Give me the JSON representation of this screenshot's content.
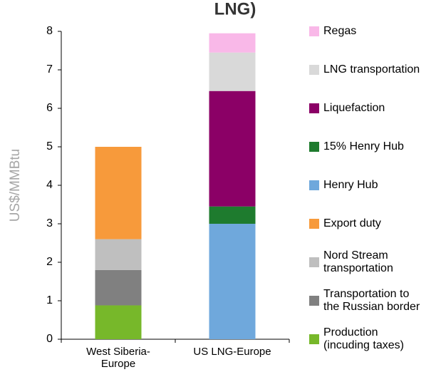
{
  "chart_data": {
    "type": "stacked_bar",
    "title": "LNG)",
    "y_label": "US$/MMBtu",
    "categories": [
      "West Siberia-Europe",
      "US LNG-Europe"
    ],
    "series": [
      {
        "name": "Production (incuding taxes)",
        "color": "#77b82a",
        "values": [
          0.88,
          null
        ]
      },
      {
        "name": "Transportation to the Russian border",
        "color": "#808080",
        "values": [
          0.92,
          null
        ]
      },
      {
        "name": "Nord Stream transportation",
        "color": "#bfbfbf",
        "values": [
          0.8,
          null
        ]
      },
      {
        "name": "Export duty",
        "color": "#f79a3b",
        "values": [
          2.4,
          null
        ]
      },
      {
        "name": "Henry Hub",
        "color": "#6fa8dc",
        "values": [
          null,
          3.0
        ]
      },
      {
        "name": "15% Henry Hub",
        "color": "#1e7b2e",
        "values": [
          null,
          0.45
        ]
      },
      {
        "name": "Liquefaction",
        "color": "#8b0066",
        "values": [
          null,
          3.0
        ]
      },
      {
        "name": "LNG transportation",
        "color": "#d9d9d9",
        "values": [
          null,
          1.0
        ]
      },
      {
        "name": "Regas",
        "color": "#f9b8e8",
        "values": [
          null,
          0.5
        ]
      }
    ],
    "ylim": [
      0,
      8
    ],
    "yticks": [
      0,
      1,
      2,
      3,
      4,
      5,
      6,
      7,
      8
    ],
    "legend": "right"
  }
}
